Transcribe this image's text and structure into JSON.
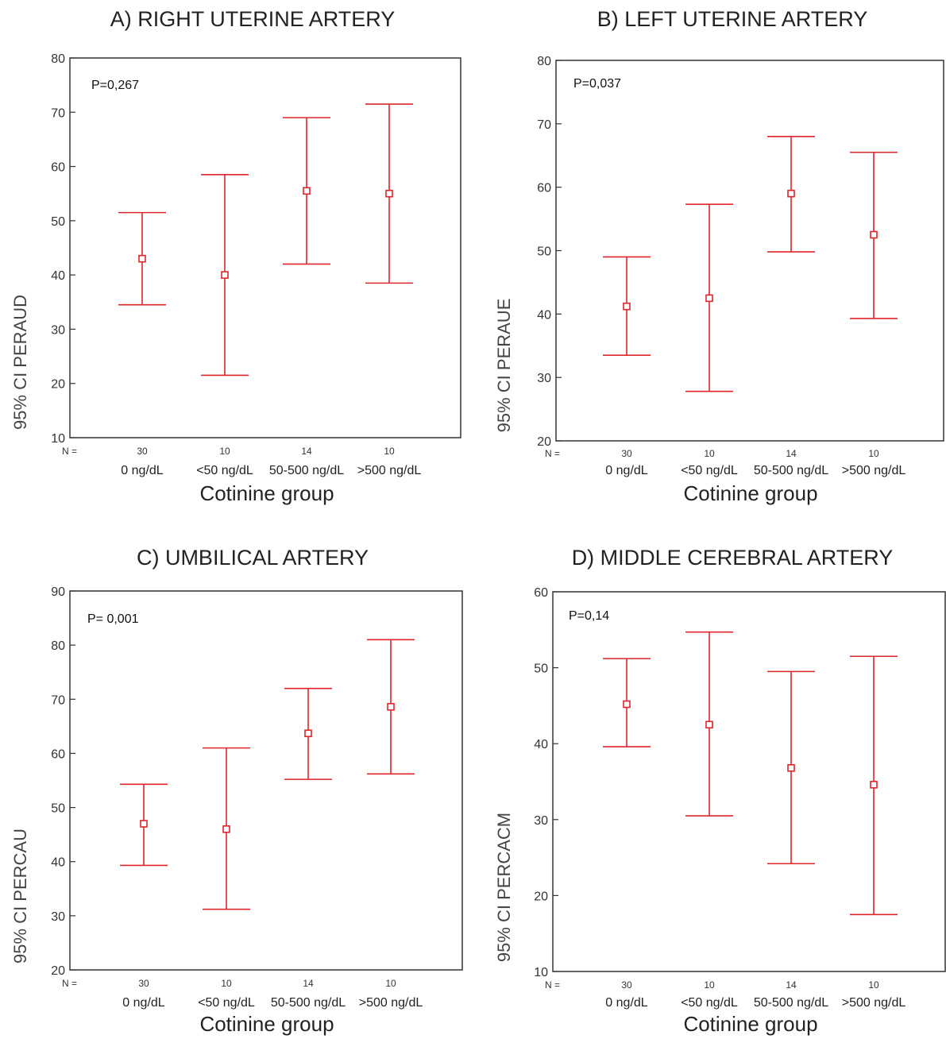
{
  "figure": {
    "n_prefix": "N =",
    "xlabel": "Cotinine group",
    "categories": [
      "0 ng/dL",
      "<50 ng/dL",
      "50-500 ng/dL",
      ">500 ng/dL"
    ],
    "n_values": [
      "30",
      "10",
      "14",
      "10"
    ],
    "error_bar_color": "#e0262b"
  },
  "chart_data": [
    {
      "type": "errorbar",
      "title": "A) RIGHT UTERINE ARTERY",
      "ylabel": "95% CI PERAUD",
      "xlabel": "Cotinine group",
      "annotation": "P=0,267",
      "categories": [
        "0 ng/dL",
        "<50 ng/dL",
        "50-500 ng/dL",
        ">500 ng/dL"
      ],
      "n": [
        30,
        10,
        14,
        10
      ],
      "mean": [
        43,
        40,
        55.5,
        55
      ],
      "lower": [
        34.5,
        21.5,
        42,
        38.5
      ],
      "upper": [
        51.5,
        58.5,
        69,
        71.5
      ],
      "ylim": [
        10,
        80
      ],
      "yticks": [
        10,
        20,
        30,
        40,
        50,
        60,
        70,
        80
      ]
    },
    {
      "type": "errorbar",
      "title": "B) LEFT UTERINE ARTERY",
      "ylabel": "95% CI PERAUE",
      "xlabel": "Cotinine group",
      "annotation": "P=0,037",
      "categories": [
        "0 ng/dL",
        "<50 ng/dL",
        "50-500 ng/dL",
        ">500 ng/dL"
      ],
      "n": [
        30,
        10,
        14,
        10
      ],
      "mean": [
        41.2,
        42.5,
        59,
        52.5
      ],
      "lower": [
        33.5,
        27.8,
        49.8,
        39.3
      ],
      "upper": [
        49,
        57.3,
        68,
        65.5
      ],
      "ylim": [
        20,
        80
      ],
      "yticks": [
        20,
        30,
        40,
        50,
        60,
        70,
        80
      ]
    },
    {
      "type": "errorbar",
      "title": "C) UMBILICAL ARTERY",
      "ylabel": "95% CI PERCAU",
      "xlabel": "Cotinine group",
      "annotation": "P= 0,001",
      "categories": [
        "0 ng/dL",
        "<50 ng/dL",
        "50-500 ng/dL",
        ">500 ng/dL"
      ],
      "n": [
        30,
        10,
        14,
        10
      ],
      "mean": [
        47,
        46,
        63.7,
        68.6
      ],
      "lower": [
        39.3,
        31.2,
        55.2,
        56.2
      ],
      "upper": [
        54.3,
        61,
        72,
        81
      ],
      "ylim": [
        20,
        90
      ],
      "yticks": [
        20,
        30,
        40,
        50,
        60,
        70,
        80,
        90
      ]
    },
    {
      "type": "errorbar",
      "title": "D) MIDDLE CEREBRAL ARTERY",
      "ylabel": "95% CI PERCACM",
      "xlabel": "Cotinine group",
      "annotation": "P=0,14",
      "categories": [
        "0 ng/dL",
        "<50 ng/dL",
        "50-500 ng/dL",
        ">500 ng/dL"
      ],
      "n": [
        30,
        10,
        14,
        10
      ],
      "mean": [
        45.2,
        42.5,
        36.8,
        34.6
      ],
      "lower": [
        39.6,
        30.5,
        24.2,
        17.5
      ],
      "upper": [
        51.2,
        54.7,
        49.5,
        51.5
      ],
      "ylim": [
        10,
        60
      ],
      "yticks": [
        10,
        20,
        30,
        40,
        50,
        60
      ]
    }
  ]
}
